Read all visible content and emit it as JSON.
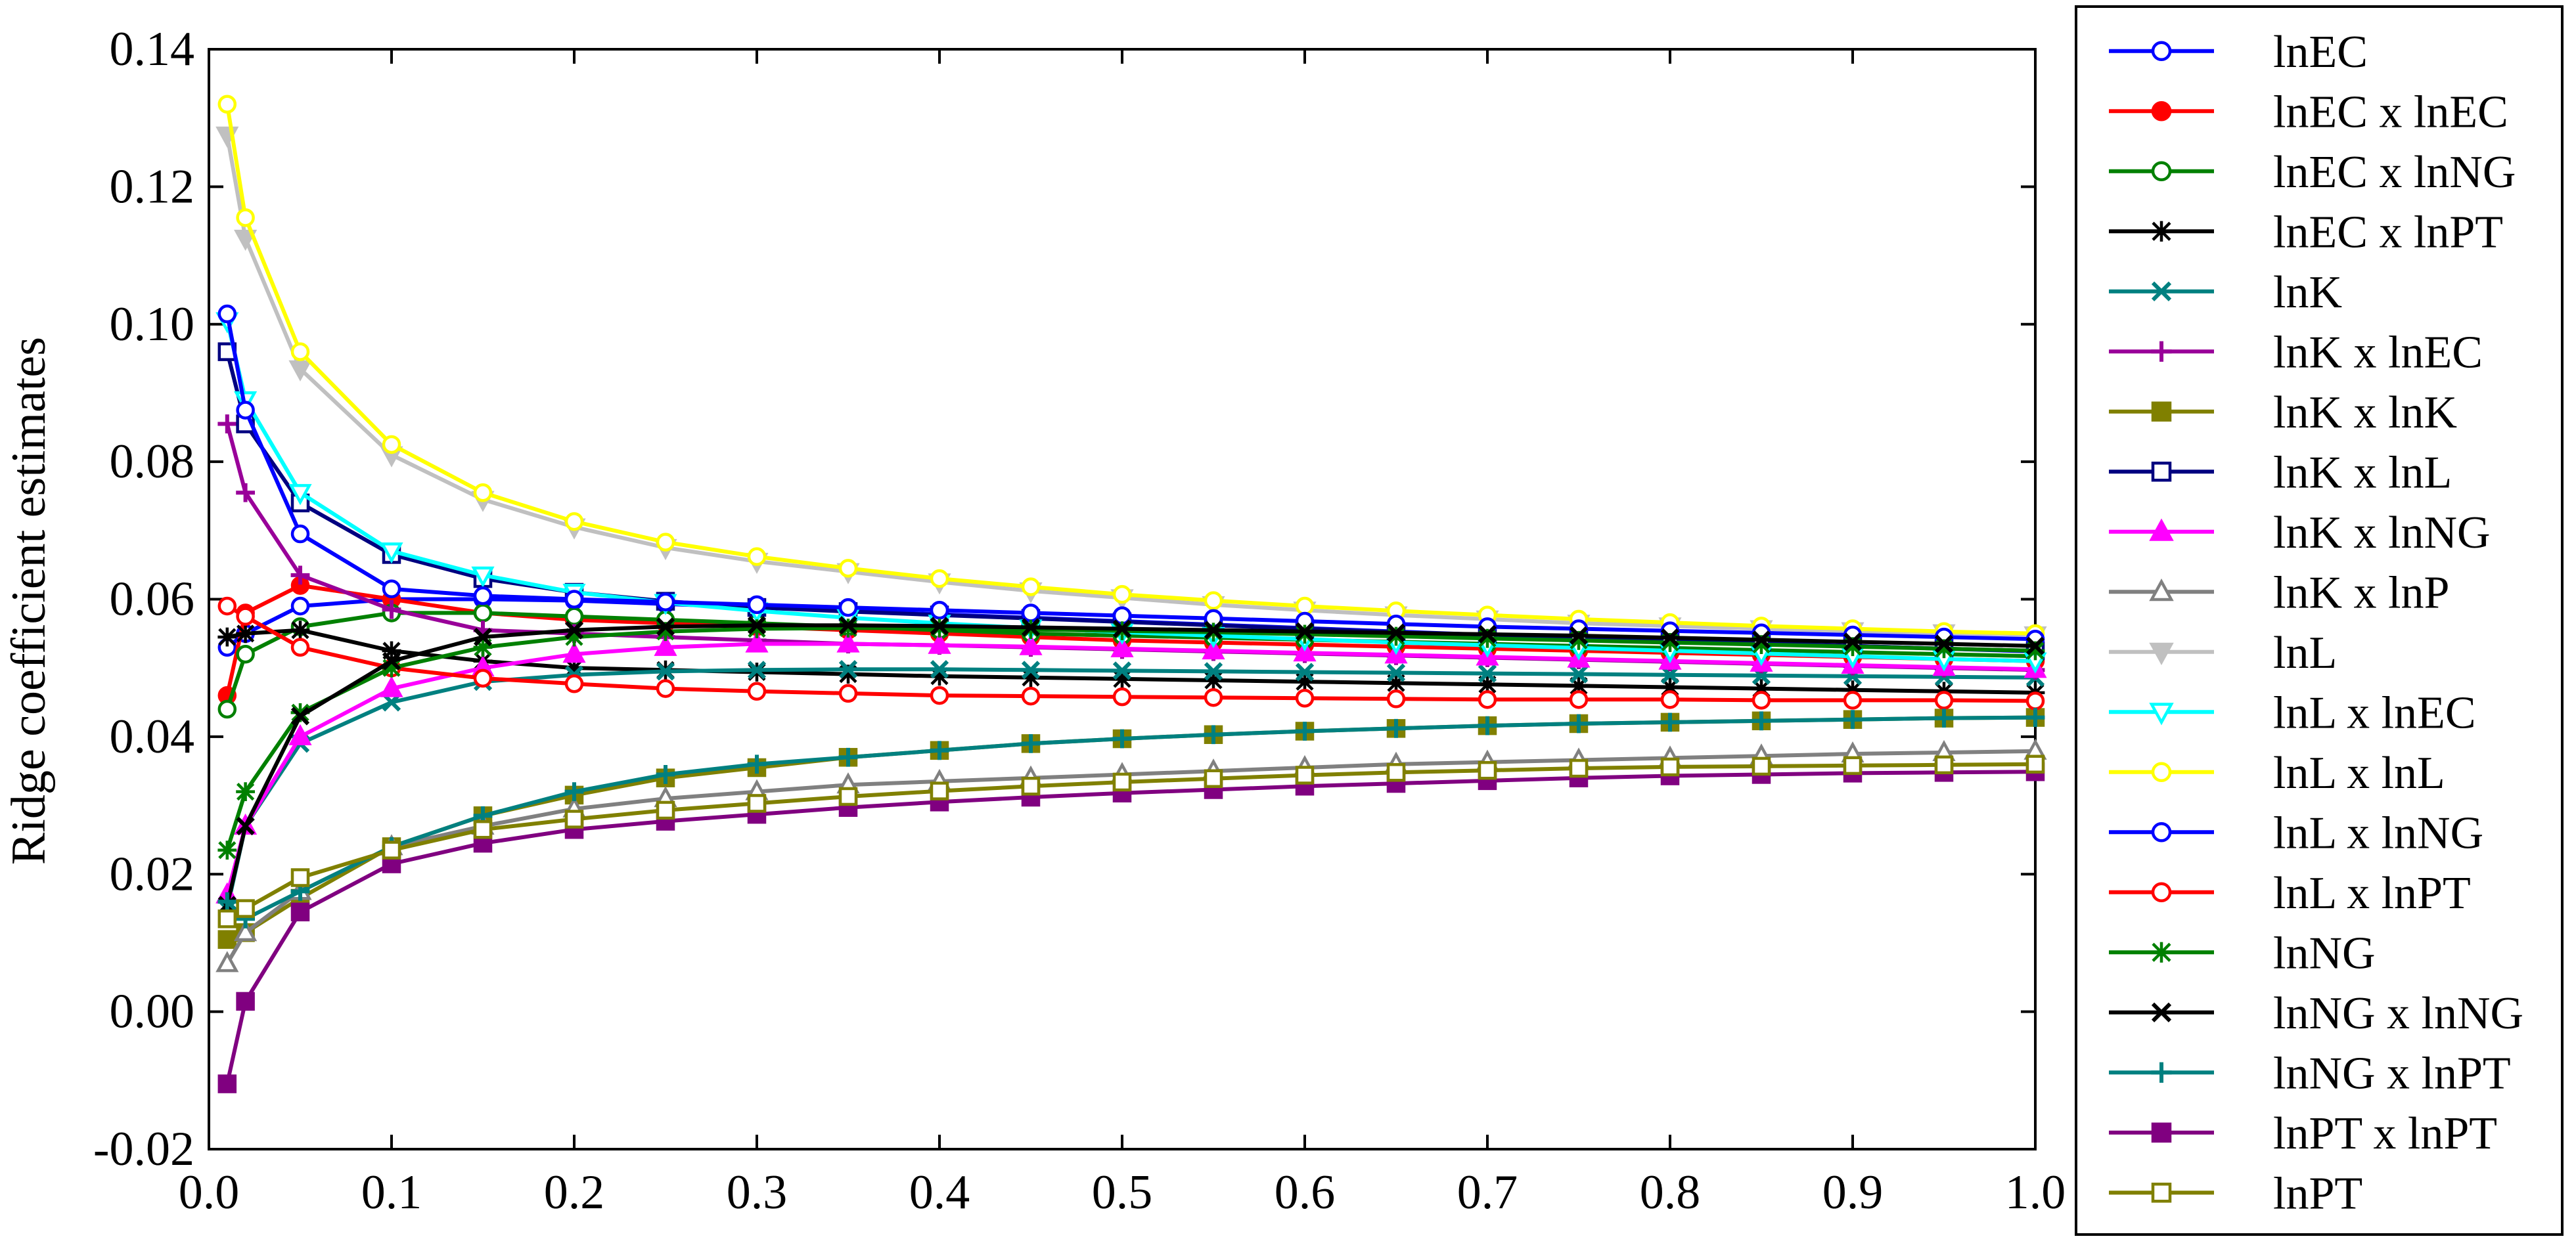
{
  "chart_data": {
    "type": "line",
    "title": "",
    "xlabel": "",
    "ylabel": "Ridge coefficient estimates",
    "xlim": [
      0.0,
      1.0
    ],
    "ylim": [
      -0.02,
      0.14
    ],
    "x_ticks": [
      "0.0",
      "0.1",
      "0.2",
      "0.3",
      "0.4",
      "0.5",
      "0.6",
      "0.7",
      "0.8",
      "0.9",
      "1.0"
    ],
    "y_ticks": [
      "-0.02",
      "0.00",
      "0.02",
      "0.04",
      "0.06",
      "0.08",
      "0.10",
      "0.12",
      "0.14"
    ],
    "grid": false,
    "legend_position": "right",
    "x": [
      0.01,
      0.02,
      0.05,
      0.1,
      0.15,
      0.2,
      0.25,
      0.3,
      0.35,
      0.4,
      0.45,
      0.5,
      0.55,
      0.6,
      0.65,
      0.7,
      0.75,
      0.8,
      0.85,
      0.9,
      0.95,
      1.0
    ],
    "series": [
      {
        "name": "lnEC",
        "color": "#0000ff",
        "marker": "circle-open",
        "values": [
          0.053,
          0.055,
          0.059,
          0.06,
          0.06,
          0.0598,
          0.0593,
          0.0588,
          0.0583,
          0.0578,
          0.0573,
          0.0568,
          0.0563,
          0.0558,
          0.0553,
          0.0548,
          0.0544,
          0.054,
          0.0536,
          0.0532,
          0.0528,
          0.0524
        ]
      },
      {
        "name": "lnEC x lnEC",
        "color": "#ff0000",
        "marker": "circle-filled",
        "values": [
          0.046,
          0.058,
          0.062,
          0.06,
          0.058,
          0.057,
          0.0565,
          0.056,
          0.0555,
          0.055,
          0.0545,
          0.054,
          0.0537,
          0.0534,
          0.0531,
          0.0528,
          0.0525,
          0.0522,
          0.0519,
          0.0516,
          0.0513,
          0.051
        ]
      },
      {
        "name": "lnEC x lnNG",
        "color": "#008000",
        "marker": "circle-open",
        "values": [
          0.044,
          0.052,
          0.056,
          0.058,
          0.058,
          0.0575,
          0.057,
          0.0565,
          0.056,
          0.0555,
          0.055,
          0.0547,
          0.0544,
          0.0541,
          0.0538,
          0.0535,
          0.0532,
          0.0529,
          0.0526,
          0.0523,
          0.052,
          0.0517
        ]
      },
      {
        "name": "lnEC x lnPT",
        "color": "#000000",
        "marker": "star",
        "values": [
          0.0545,
          0.055,
          0.0555,
          0.0525,
          0.051,
          0.05,
          0.0497,
          0.0494,
          0.0491,
          0.0488,
          0.0486,
          0.0484,
          0.0482,
          0.048,
          0.0478,
          0.0476,
          0.0474,
          0.0472,
          0.047,
          0.0468,
          0.0466,
          0.0464
        ]
      },
      {
        "name": "lnK",
        "color": "#008080",
        "marker": "x",
        "values": [
          0.015,
          0.027,
          0.039,
          0.045,
          0.048,
          0.049,
          0.0495,
          0.0497,
          0.0498,
          0.0498,
          0.0497,
          0.0496,
          0.0495,
          0.0494,
          0.0493,
          0.0492,
          0.0491,
          0.049,
          0.0489,
          0.0488,
          0.0487,
          0.0486
        ]
      },
      {
        "name": "lnK x lnEC",
        "color": "#990099",
        "marker": "plus",
        "values": [
          0.0855,
          0.0755,
          0.0635,
          0.0585,
          0.0555,
          0.055,
          0.0545,
          0.054,
          0.0535,
          0.0533,
          0.053,
          0.0527,
          0.0524,
          0.0521,
          0.0518,
          0.0515,
          0.0512,
          0.0509,
          0.0506,
          0.0503,
          0.05,
          0.0497
        ]
      },
      {
        "name": "lnK x lnK",
        "color": "#808000",
        "marker": "square-filled",
        "values": [
          0.0105,
          0.0115,
          0.0165,
          0.024,
          0.0285,
          0.0315,
          0.034,
          0.0355,
          0.037,
          0.038,
          0.039,
          0.0397,
          0.0403,
          0.0408,
          0.0412,
          0.0416,
          0.0419,
          0.0421,
          0.0423,
          0.0425,
          0.0427,
          0.0428
        ]
      },
      {
        "name": "lnK x lnL",
        "color": "#000080",
        "marker": "square-open",
        "values": [
          0.096,
          0.0855,
          0.074,
          0.0665,
          0.063,
          0.061,
          0.0597,
          0.0588,
          0.0582,
          0.0577,
          0.0572,
          0.0567,
          0.0562,
          0.0557,
          0.0552,
          0.0548,
          0.0544,
          0.054,
          0.0536,
          0.0532,
          0.0528,
          0.0525
        ]
      },
      {
        "name": "lnK x lnNG",
        "color": "#ff00ff",
        "marker": "triangle-filled",
        "values": [
          0.017,
          0.027,
          0.04,
          0.047,
          0.05,
          0.052,
          0.053,
          0.0535,
          0.0535,
          0.0533,
          0.0531,
          0.0528,
          0.0525,
          0.0522,
          0.0519,
          0.0516,
          0.0513,
          0.051,
          0.0507,
          0.0504,
          0.0501,
          0.0498
        ]
      },
      {
        "name": "lnK x lnP",
        "color": "#808080",
        "marker": "triangle-open",
        "values": [
          0.007,
          0.0115,
          0.0175,
          0.024,
          0.027,
          0.0295,
          0.031,
          0.032,
          0.033,
          0.0335,
          0.034,
          0.0345,
          0.035,
          0.0355,
          0.036,
          0.0363,
          0.0366,
          0.0369,
          0.0372,
          0.0375,
          0.0377,
          0.0379
        ]
      },
      {
        "name": "lnL",
        "color": "#c0c0c0",
        "marker": "triangle-down-filled",
        "values": [
          0.1275,
          0.1125,
          0.0935,
          0.081,
          0.0745,
          0.0705,
          0.0675,
          0.0655,
          0.064,
          0.0625,
          0.0612,
          0.0602,
          0.0592,
          0.0584,
          0.0577,
          0.0571,
          0.0565,
          0.0561,
          0.0557,
          0.0554,
          0.0551,
          0.0548
        ]
      },
      {
        "name": "lnL x lnEC",
        "color": "#00ffff",
        "marker": "triangle-down-open",
        "values": [
          0.1005,
          0.089,
          0.0755,
          0.067,
          0.0635,
          0.061,
          0.0595,
          0.0583,
          0.0573,
          0.0565,
          0.0558,
          0.0552,
          0.0547,
          0.0542,
          0.0537,
          0.0533,
          0.0529,
          0.0525,
          0.0521,
          0.0517,
          0.0513,
          0.051
        ]
      },
      {
        "name": "lnL x lnL",
        "color": "#ffff00",
        "marker": "circle-open",
        "values": [
          0.132,
          0.1155,
          0.096,
          0.0825,
          0.0755,
          0.0713,
          0.0683,
          0.0662,
          0.0645,
          0.063,
          0.0618,
          0.0607,
          0.0598,
          0.059,
          0.0583,
          0.0577,
          0.0571,
          0.0566,
          0.0561,
          0.0557,
          0.0553,
          0.055
        ]
      },
      {
        "name": "lnL x lnNG",
        "color": "#0000ff",
        "marker": "circle-open",
        "values": [
          0.1015,
          0.0875,
          0.0695,
          0.0615,
          0.0605,
          0.06,
          0.0596,
          0.0592,
          0.0588,
          0.0584,
          0.058,
          0.0576,
          0.0572,
          0.0568,
          0.0564,
          0.056,
          0.0557,
          0.0554,
          0.0551,
          0.0548,
          0.0545,
          0.0542
        ]
      },
      {
        "name": "lnL x lnPT",
        "color": "#ff0000",
        "marker": "circle-open",
        "values": [
          0.059,
          0.0575,
          0.053,
          0.05,
          0.0485,
          0.0477,
          0.047,
          0.0466,
          0.0463,
          0.046,
          0.0459,
          0.0458,
          0.0457,
          0.0456,
          0.0455,
          0.0454,
          0.0454,
          0.0454,
          0.0453,
          0.0453,
          0.0453,
          0.0452
        ]
      },
      {
        "name": "lnNG",
        "color": "#008000",
        "marker": "star",
        "values": [
          0.0235,
          0.032,
          0.0435,
          0.05,
          0.053,
          0.0545,
          0.0553,
          0.0557,
          0.0558,
          0.0558,
          0.0556,
          0.0554,
          0.0552,
          0.0549,
          0.0546,
          0.0543,
          0.054,
          0.0537,
          0.0534,
          0.0531,
          0.0528,
          0.0525
        ]
      },
      {
        "name": "lnNG x lnNG",
        "color": "#000000",
        "marker": "x",
        "values": [
          0.0155,
          0.027,
          0.043,
          0.051,
          0.0545,
          0.0555,
          0.056,
          0.0562,
          0.0562,
          0.0561,
          0.0559,
          0.0557,
          0.0555,
          0.0553,
          0.0551,
          0.0549,
          0.0547,
          0.0544,
          0.0541,
          0.0538,
          0.0535,
          0.0532
        ]
      },
      {
        "name": "lnNG x lnPT",
        "color": "#008080",
        "marker": "plus",
        "values": [
          0.016,
          0.0135,
          0.0175,
          0.024,
          0.0285,
          0.032,
          0.0345,
          0.036,
          0.037,
          0.038,
          0.039,
          0.0397,
          0.0403,
          0.0408,
          0.0412,
          0.0416,
          0.0419,
          0.0421,
          0.0423,
          0.0425,
          0.0427,
          0.0428
        ]
      },
      {
        "name": "lnPT x lnPT",
        "color": "#800080",
        "marker": "square-filled",
        "values": [
          -0.0105,
          0.0015,
          0.0145,
          0.0215,
          0.0245,
          0.0265,
          0.0277,
          0.0287,
          0.0297,
          0.0305,
          0.0312,
          0.0318,
          0.0323,
          0.0328,
          0.0332,
          0.0336,
          0.034,
          0.0343,
          0.0345,
          0.0347,
          0.0348,
          0.0349
        ]
      },
      {
        "name": "lnPT",
        "color": "#808000",
        "marker": "square-open",
        "values": [
          0.0135,
          0.015,
          0.0195,
          0.0235,
          0.0265,
          0.028,
          0.0293,
          0.0303,
          0.0313,
          0.0321,
          0.0328,
          0.0334,
          0.0339,
          0.0344,
          0.0348,
          0.0351,
          0.0354,
          0.0356,
          0.0357,
          0.0358,
          0.0359,
          0.036
        ]
      }
    ]
  }
}
